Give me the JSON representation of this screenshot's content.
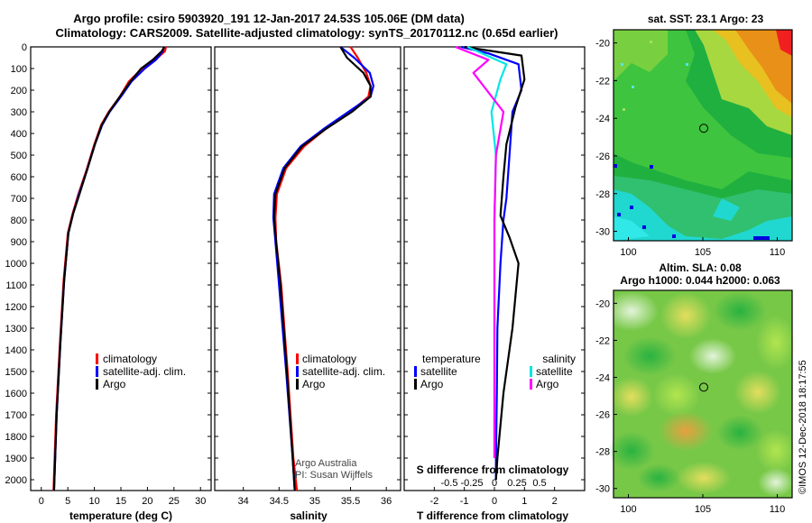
{
  "title_line1": "Argo profile: csiro 5903920_191 12-Jan-2017 24.53S 105.06E (DM data)",
  "title_line2": "Climatology: CARS2009. Satellite-adjusted climatology: synTS_20170112.nc (0.65d earlier)",
  "colors": {
    "climatology": "#ff0000",
    "satellite": "#0000ff",
    "argo": "#000000",
    "satellite_s": "#00e5e5",
    "argo_s": "#ff00ff"
  },
  "depth_ticks": [
    "0",
    "100",
    "200",
    "300",
    "400",
    "500",
    "600",
    "700",
    "800",
    "900",
    "1000",
    "1100",
    "1200",
    "1300",
    "1400",
    "1500",
    "1600",
    "1700",
    "1800",
    "1900",
    "2000"
  ],
  "chart_data": [
    {
      "type": "line",
      "name": "temperature-profile",
      "xlabel": "temperature (deg C)",
      "ylabel": "depth (m)",
      "xlim": [
        -2,
        32
      ],
      "ylim": [
        2050,
        0
      ],
      "xticks": [
        "0",
        "5",
        "10",
        "15",
        "20",
        "25",
        "30"
      ],
      "legend": [
        "climatology",
        "satellite-adj. clim.",
        "Argo"
      ],
      "series": [
        {
          "name": "climatology",
          "color_key": "climatology",
          "x": [
            23.5,
            23.3,
            21.5,
            19,
            16.5,
            14.8,
            12.7,
            11.3,
            10,
            8.5,
            7,
            5.9,
            5,
            4.2,
            3.5,
            2.8,
            2.3
          ],
          "y": [
            0,
            20,
            60,
            100,
            160,
            230,
            300,
            360,
            450,
            570,
            680,
            770,
            860,
            1080,
            1370,
            1700,
            2050
          ]
        },
        {
          "name": "satellite-adj. clim.",
          "color_key": "satellite",
          "x": [
            23.1,
            22.9,
            21.6,
            19.5,
            17,
            15,
            12.9,
            11.5,
            10.1,
            8.6,
            7.1,
            6,
            5.1,
            4.3,
            3.6,
            2.9,
            2.4
          ],
          "y": [
            0,
            20,
            60,
            100,
            160,
            230,
            300,
            360,
            450,
            570,
            680,
            770,
            860,
            1080,
            1370,
            1700,
            2050
          ]
        },
        {
          "name": "Argo",
          "color_key": "argo",
          "x": [
            23.2,
            22.7,
            21,
            18.8,
            16.8,
            14.8,
            12.8,
            11.4,
            10.1,
            8.6,
            7.2,
            6,
            5.1,
            4.3,
            3.6,
            2.9,
            2.4
          ],
          "y": [
            0,
            20,
            60,
            100,
            160,
            230,
            300,
            360,
            450,
            570,
            680,
            770,
            860,
            1080,
            1370,
            1700,
            2050
          ]
        }
      ]
    },
    {
      "type": "line",
      "name": "salinity-profile",
      "xlabel": "salinity",
      "ylabel": "",
      "xlim": [
        33.6,
        36.2
      ],
      "ylim": [
        2050,
        0
      ],
      "xticks": [
        "34",
        "34.5",
        "35",
        "35.5",
        "36"
      ],
      "legend": [
        "climatology",
        "satellite-adj. clim.",
        "Argo"
      ],
      "annotation_line1": "Argo Australia",
      "annotation_line2": "PI: Susan Wijffels",
      "series": [
        {
          "name": "climatology",
          "color_key": "climatology",
          "x": [
            35.5,
            35.6,
            35.72,
            35.78,
            35.75,
            35.5,
            35.15,
            34.85,
            34.6,
            34.47,
            34.45,
            34.46,
            34.53,
            34.62,
            34.7,
            34.75
          ],
          "y": [
            0,
            50,
            120,
            180,
            230,
            300,
            380,
            460,
            560,
            680,
            790,
            900,
            1100,
            1500,
            1900,
            2050
          ]
        },
        {
          "name": "satellite-adj. clim.",
          "color_key": "satellite",
          "x": [
            35.36,
            35.55,
            35.77,
            35.82,
            35.78,
            35.47,
            35.12,
            34.8,
            34.56,
            34.43,
            34.42,
            34.45,
            34.5,
            34.6,
            34.69,
            34.72
          ],
          "y": [
            0,
            50,
            120,
            180,
            230,
            300,
            380,
            460,
            560,
            680,
            790,
            900,
            1100,
            1500,
            1900,
            2050
          ]
        },
        {
          "name": "Argo",
          "color_key": "argo",
          "x": [
            35.36,
            35.45,
            35.68,
            35.78,
            35.78,
            35.52,
            35.15,
            34.82,
            34.58,
            34.45,
            34.43,
            34.46,
            34.52,
            34.61,
            34.69,
            34.72
          ],
          "y": [
            0,
            50,
            120,
            180,
            230,
            300,
            380,
            460,
            560,
            680,
            790,
            900,
            1100,
            1500,
            1900,
            2050
          ]
        }
      ]
    },
    {
      "type": "line",
      "name": "difference-profile",
      "xlabel": "T difference from climatology",
      "ylabel": "",
      "xlim": [
        -3,
        3
      ],
      "ylim": [
        2050,
        0
      ],
      "xticks": [
        "-2",
        "-1",
        "0",
        "1",
        "2"
      ],
      "s_axis_label": "S difference from climatology",
      "s_xticks": [
        "-0.5",
        "-0.25",
        "0",
        "0.25",
        "0.5"
      ],
      "legend_temperature": "temperature",
      "legend_salinity": "salinity",
      "legend_items": [
        "satellite",
        "Argo",
        "satellite",
        "Argo"
      ],
      "series": [
        {
          "name": "T satellite",
          "color_key": "satellite",
          "x": [
            -1.1,
            -0.2,
            0.8,
            0.9,
            0.6,
            0.5,
            0.4,
            0.3,
            0.2,
            0.1,
            0.08,
            0.05,
            0.05
          ],
          "y": [
            0,
            30,
            80,
            200,
            300,
            500,
            700,
            800,
            1000,
            1300,
            1600,
            1900,
            2000
          ]
        },
        {
          "name": "T Argo",
          "color_key": "argo",
          "x": [
            -1.0,
            0.9,
            1.0,
            0.7,
            0.4,
            0.3,
            0.2,
            0.5,
            0.8,
            0.6,
            0.3,
            0.1,
            0.05
          ],
          "y": [
            0,
            40,
            150,
            280,
            450,
            600,
            780,
            880,
            1000,
            1300,
            1600,
            1900,
            2000
          ]
        },
        {
          "name": "S satellite",
          "color_key": "satellite_s",
          "x": [
            -0.9,
            0.4,
            0.2,
            -0.1,
            0.05,
            0.0,
            0.0,
            0.0,
            0.0
          ],
          "y": [
            0,
            80,
            150,
            300,
            500,
            800,
            1200,
            1600,
            1900
          ]
        },
        {
          "name": "S Argo",
          "color_key": "argo_s",
          "x": [
            -1.3,
            -0.2,
            -0.7,
            0.3,
            0.05,
            0.0,
            0.0,
            0.0,
            0.0
          ],
          "y": [
            0,
            60,
            120,
            300,
            500,
            800,
            1200,
            1600,
            1900
          ]
        }
      ]
    },
    {
      "type": "heatmap",
      "name": "sst-map",
      "title": "sat. SST: 23.1 Argo: 23",
      "xticks": [
        "100",
        "105",
        "110"
      ],
      "yticks": [
        "-20",
        "-22",
        "-24",
        "-26",
        "-28",
        "-30"
      ],
      "marker": {
        "lon": 105.06,
        "lat": -24.53
      }
    },
    {
      "type": "heatmap",
      "name": "sla-map",
      "title_line1": "Altim. SLA: 0.08",
      "title_line2": "Argo h1000: 0.044 h2000: 0.063",
      "xticks": [
        "100",
        "105",
        "110"
      ],
      "yticks": [
        "-20",
        "-22",
        "-24",
        "-26",
        "-28",
        "-30"
      ],
      "marker": {
        "lon": 105.06,
        "lat": -24.53
      }
    }
  ],
  "credit": "©IMOS 12-Dec-2018 18:17:55"
}
